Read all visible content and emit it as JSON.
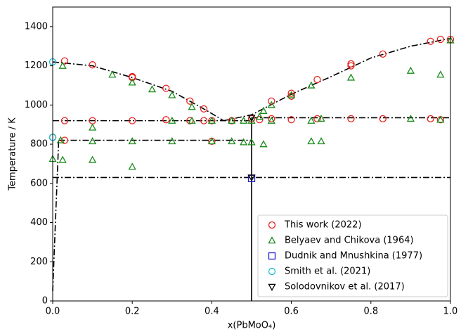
{
  "chart_data": {
    "type": "scatter",
    "xlabel": "x(PbMoO₄)",
    "ylabel": "Temperature / K",
    "xlim": [
      0,
      1
    ],
    "ylim": [
      0,
      1500
    ],
    "xticks": [
      {
        "value": 0,
        "label": "0.0"
      },
      {
        "value": 0.2,
        "label": "0.2"
      },
      {
        "value": 0.4,
        "label": "0.4"
      },
      {
        "value": 0.6,
        "label": "0.6"
      },
      {
        "value": 0.8,
        "label": "0.8"
      },
      {
        "value": 1,
        "label": "1.0"
      }
    ],
    "yticks": [
      0,
      200,
      400,
      600,
      800,
      1000,
      1200,
      1400
    ],
    "legend": "lower right",
    "series": [
      {
        "name": "This work (2022)",
        "color": "#e8211d",
        "marker": "circle",
        "x": [
          0.03,
          0.1,
          0.2,
          0.2,
          0.285,
          0.345,
          0.38,
          0.4,
          0.45,
          0.03,
          0.1,
          0.2,
          0.285,
          0.345,
          0.38,
          0.5,
          0.52,
          0.55,
          0.6,
          0.6,
          0.665,
          0.75,
          0.75,
          0.83,
          0.95,
          0.975,
          1.0,
          0.55,
          0.6,
          0.665,
          0.75,
          0.83,
          0.95,
          0.975,
          0.03,
          0.4,
          0.0
        ],
        "values": [
          1225,
          1205,
          1145,
          1140,
          1085,
          1020,
          980,
          920,
          920,
          920,
          920,
          920,
          925,
          920,
          920,
          930,
          925,
          1020,
          1060,
          1045,
          1130,
          1210,
          1200,
          1260,
          1325,
          1335,
          1335,
          930,
          925,
          930,
          930,
          930,
          930,
          925,
          820,
          815,
          835
        ]
      },
      {
        "name": "Belyaev and Chikova (1964)",
        "color": "#1a8a1a",
        "marker": "triangle-up",
        "x": [
          0,
          0.025,
          0.025,
          0.02,
          0.1,
          0.1,
          0.1,
          0.15,
          0.2,
          0.2,
          0.2,
          0.25,
          0.3,
          0.3,
          0.3,
          0.35,
          0.35,
          0.4,
          0.4,
          0.45,
          0.45,
          0.48,
          0.48,
          0.5,
          0.5,
          0.52,
          0.53,
          0.53,
          0.55,
          0.55,
          0.6,
          0.65,
          0.65,
          0.65,
          0.675,
          0.675,
          0.75,
          0.9,
          0.9,
          0.975,
          0.975,
          1.0
        ],
        "values": [
          725,
          720,
          1200,
          820,
          885,
          815,
          720,
          1155,
          1115,
          815,
          685,
          1080,
          1050,
          920,
          815,
          990,
          920,
          920,
          815,
          920,
          815,
          920,
          810,
          920,
          810,
          940,
          970,
          800,
          1000,
          920,
          1050,
          1100,
          920,
          815,
          930,
          815,
          1140,
          1175,
          930,
          1155,
          925,
          1330
        ]
      },
      {
        "name": "Dudnik and Mnushkina (1977)",
        "color": "#1f1fcc",
        "marker": "square",
        "x": [
          0.5
        ],
        "values": [
          625
        ]
      },
      {
        "name": "Smith et al. (2021)",
        "color": "#17bfcf",
        "marker": "circle",
        "x": [
          0,
          0
        ],
        "values": [
          1220,
          835
        ]
      },
      {
        "name": "Solodovnikov et al. (2017)",
        "color": "#000000",
        "marker": "triangle-down",
        "x": [
          0.5,
          0.5
        ],
        "values": [
          935,
          630
        ]
      }
    ],
    "lines": [
      {
        "style": "dashdot",
        "color": "#000000",
        "x": [
          0,
          0.1,
          0.2,
          0.3,
          0.38,
          0.43
        ],
        "values": [
          1220,
          1200,
          1140,
          1070,
          980,
          920
        ]
      },
      {
        "style": "dashdot",
        "color": "#000000",
        "x": [
          0.43,
          0.5,
          0.6,
          0.7,
          0.8,
          0.9,
          1.0
        ],
        "values": [
          920,
          950,
          1055,
          1145,
          1240,
          1300,
          1340
        ]
      },
      {
        "style": "dashdot",
        "color": "#000000",
        "x": [
          0,
          0.5
        ],
        "values": [
          920,
          920
        ]
      },
      {
        "style": "dashdot",
        "color": "#000000",
        "x": [
          0.5,
          1
        ],
        "values": [
          935,
          935
        ]
      },
      {
        "style": "dashdot",
        "color": "#000000",
        "x": [
          0.015,
          0.5
        ],
        "values": [
          820,
          820
        ]
      },
      {
        "style": "dashdot",
        "color": "#000000",
        "x": [
          0,
          1
        ],
        "values": [
          630,
          630
        ]
      },
      {
        "style": "dashdot",
        "color": "#000000",
        "x": [
          0,
          0.015
        ],
        "values": [
          50,
          820
        ]
      },
      {
        "style": "solid",
        "color": "#000000",
        "x": [
          0.5,
          0.5
        ],
        "values": [
          0,
          935
        ]
      }
    ]
  }
}
